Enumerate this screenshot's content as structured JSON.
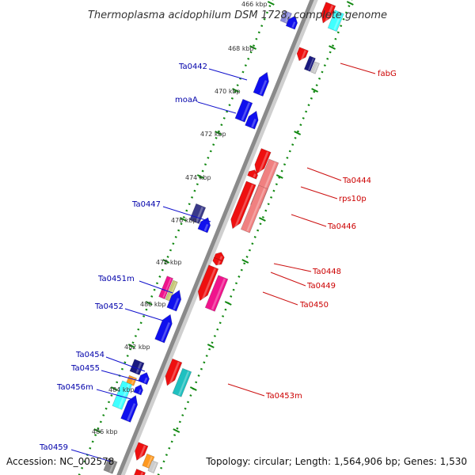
{
  "title": "Thermoplasma acidophilum DSM 1728, complete genome",
  "footer": {
    "accession": "Accession: NC_002578",
    "summary": "Topology: circular; Length: 1,564,906 bp; Genes: 1,530"
  },
  "ticks": [
    "466 kbp",
    "468 kbp",
    "470 kbp",
    "472 kbp",
    "474 kbp",
    "476 kbp",
    "478 kbp",
    "480 kbp",
    "482 kbp",
    "484 kbp",
    "486 kbp"
  ],
  "left_labels": [
    "Ta0442",
    "moaA",
    "Ta0447",
    "Ta0451m",
    "Ta0452",
    "Ta0454",
    "Ta0455",
    "Ta0456m",
    "Ta0459"
  ],
  "right_labels": [
    "fabG",
    "Ta0444",
    "rps10p",
    "Ta0446",
    "Ta0448",
    "Ta0449",
    "Ta0450",
    "Ta0453m"
  ],
  "colors": {
    "forward": "#1010ee",
    "reverse": "#ee1010",
    "navy": "#1a1a80",
    "slate": "#3a3a8a",
    "salmon": "#f08080",
    "magenta": "#f0148c",
    "teal": "#20c0c0",
    "cyan": "#40ffff",
    "orange": "#ff9920",
    "olive": "#c8c878",
    "gray": "#888888",
    "tick": "#118811"
  }
}
